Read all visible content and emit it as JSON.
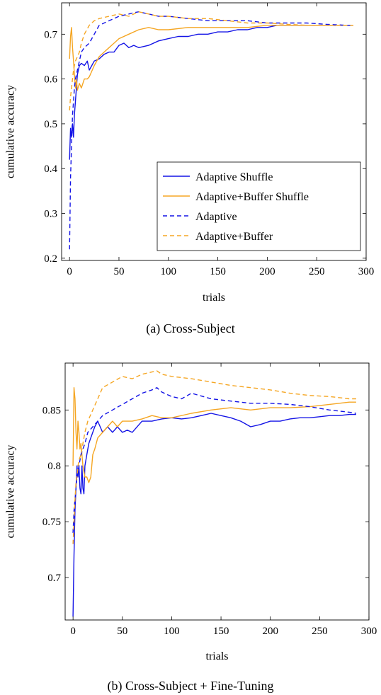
{
  "colors": {
    "blue": "#1414e6",
    "orange": "#f5a623"
  },
  "chart_data": [
    {
      "type": "line",
      "caption": "(a) Cross-Subject",
      "xlabel": "trials",
      "ylabel": "cumulative accuracy",
      "xlim": [
        -8,
        300
      ],
      "ylim": [
        0.195,
        0.77
      ],
      "xticks": [
        0,
        50,
        100,
        150,
        200,
        250,
        300
      ],
      "yticks": [
        0.2,
        0.3,
        0.4,
        0.5,
        0.6,
        0.7
      ],
      "ytick_labels": [
        "0.2",
        "0.3",
        "0.4",
        "0.5",
        "0.6",
        "0.7"
      ],
      "legend": "bottom-right",
      "grid": false,
      "series": [
        {
          "name": "Adaptive Shuffle",
          "color": "blue",
          "dash": false,
          "x": [
            0,
            1,
            2,
            3,
            4,
            5,
            6,
            7,
            8,
            10,
            12,
            15,
            18,
            20,
            25,
            30,
            35,
            40,
            45,
            50,
            55,
            60,
            65,
            70,
            80,
            90,
            100,
            110,
            120,
            130,
            140,
            150,
            160,
            170,
            180,
            190,
            200,
            210,
            220,
            230,
            240,
            250,
            260,
            270,
            280,
            287
          ],
          "y": [
            0.42,
            0.49,
            0.47,
            0.5,
            0.47,
            0.52,
            0.55,
            0.58,
            0.61,
            0.63,
            0.635,
            0.63,
            0.64,
            0.62,
            0.64,
            0.645,
            0.655,
            0.66,
            0.66,
            0.675,
            0.68,
            0.67,
            0.675,
            0.67,
            0.675,
            0.685,
            0.69,
            0.695,
            0.695,
            0.7,
            0.7,
            0.705,
            0.705,
            0.71,
            0.71,
            0.715,
            0.715,
            0.72,
            0.72,
            0.72,
            0.72,
            0.72,
            0.72,
            0.72,
            0.72,
            0.72
          ]
        },
        {
          "name": "Adaptive+Buffer Shuffle",
          "color": "orange",
          "dash": false,
          "x": [
            0,
            1,
            2,
            3,
            4,
            5,
            6,
            7,
            8,
            10,
            12,
            15,
            18,
            20,
            25,
            30,
            35,
            40,
            45,
            50,
            60,
            70,
            80,
            90,
            100,
            120,
            140,
            160,
            180,
            200,
            220,
            240,
            260,
            280,
            287
          ],
          "y": [
            0.645,
            0.695,
            0.715,
            0.67,
            0.64,
            0.61,
            0.58,
            0.6,
            0.575,
            0.59,
            0.58,
            0.6,
            0.6,
            0.605,
            0.63,
            0.65,
            0.66,
            0.67,
            0.68,
            0.69,
            0.7,
            0.71,
            0.715,
            0.71,
            0.71,
            0.715,
            0.715,
            0.715,
            0.715,
            0.72,
            0.72,
            0.72,
            0.72,
            0.72,
            0.72
          ]
        },
        {
          "name": "Adaptive",
          "color": "blue",
          "dash": true,
          "x": [
            0,
            1,
            2,
            3,
            4,
            5,
            6,
            8,
            10,
            12,
            15,
            20,
            25,
            30,
            40,
            50,
            60,
            65,
            70,
            80,
            90,
            100,
            120,
            140,
            160,
            180,
            200,
            220,
            240,
            260,
            280,
            287
          ],
          "y": [
            0.22,
            0.38,
            0.45,
            0.52,
            0.55,
            0.58,
            0.6,
            0.62,
            0.64,
            0.66,
            0.67,
            0.68,
            0.7,
            0.72,
            0.73,
            0.74,
            0.745,
            0.748,
            0.75,
            0.745,
            0.74,
            0.74,
            0.735,
            0.73,
            0.73,
            0.73,
            0.725,
            0.725,
            0.725,
            0.722,
            0.72,
            0.72
          ]
        },
        {
          "name": "Adaptive+Buffer",
          "color": "orange",
          "dash": true,
          "x": [
            0,
            1,
            2,
            3,
            4,
            5,
            6,
            8,
            10,
            12,
            15,
            20,
            25,
            30,
            40,
            50,
            60,
            70,
            80,
            90,
            100,
            120,
            140,
            160,
            180,
            200,
            220,
            240,
            260,
            280,
            287
          ],
          "y": [
            0.53,
            0.56,
            0.58,
            0.6,
            0.62,
            0.63,
            0.64,
            0.65,
            0.66,
            0.68,
            0.7,
            0.72,
            0.73,
            0.735,
            0.74,
            0.745,
            0.74,
            0.75,
            0.745,
            0.74,
            0.74,
            0.735,
            0.735,
            0.73,
            0.725,
            0.725,
            0.722,
            0.72,
            0.72,
            0.72,
            0.72
          ]
        }
      ]
    },
    {
      "type": "line",
      "caption": "(b) Cross-Subject + Fine-Tuning",
      "xlabel": "trials",
      "ylabel": "cumulative accuracy",
      "xlim": [
        -8,
        300
      ],
      "ylim": [
        0.662,
        0.892
      ],
      "xticks": [
        0,
        50,
        100,
        150,
        200,
        250,
        300
      ],
      "yticks": [
        0.7,
        0.75,
        0.8,
        0.85
      ],
      "ytick_labels": [
        "0.7",
        "0.75",
        "0.8",
        "0.85"
      ],
      "grid": false,
      "series": [
        {
          "name": "Adaptive Shuffle",
          "color": "blue",
          "dash": false,
          "x": [
            0,
            1,
            2,
            3,
            4,
            5,
            6,
            7,
            8,
            9,
            10,
            11,
            12,
            14,
            16,
            18,
            20,
            22,
            25,
            30,
            35,
            40,
            45,
            50,
            55,
            60,
            70,
            80,
            90,
            100,
            110,
            120,
            130,
            140,
            150,
            160,
            170,
            180,
            190,
            200,
            210,
            220,
            230,
            240,
            250,
            260,
            270,
            280,
            287
          ],
          "y": [
            0.665,
            0.72,
            0.76,
            0.78,
            0.8,
            0.79,
            0.8,
            0.78,
            0.775,
            0.8,
            0.78,
            0.775,
            0.8,
            0.81,
            0.82,
            0.825,
            0.83,
            0.835,
            0.84,
            0.83,
            0.835,
            0.83,
            0.835,
            0.83,
            0.832,
            0.83,
            0.84,
            0.84,
            0.842,
            0.843,
            0.842,
            0.843,
            0.845,
            0.847,
            0.845,
            0.843,
            0.84,
            0.835,
            0.837,
            0.84,
            0.84,
            0.842,
            0.843,
            0.843,
            0.844,
            0.845,
            0.845,
            0.846,
            0.846
          ]
        },
        {
          "name": "Adaptive+Buffer Shuffle",
          "color": "orange",
          "dash": false,
          "x": [
            0,
            1,
            2,
            3,
            4,
            5,
            6,
            7,
            8,
            10,
            12,
            14,
            16,
            18,
            20,
            22,
            25,
            30,
            35,
            40,
            45,
            50,
            60,
            70,
            80,
            90,
            100,
            120,
            140,
            160,
            180,
            200,
            220,
            240,
            260,
            280,
            287
          ],
          "y": [
            0.8,
            0.87,
            0.86,
            0.83,
            0.815,
            0.84,
            0.83,
            0.815,
            0.82,
            0.8,
            0.79,
            0.79,
            0.785,
            0.79,
            0.81,
            0.815,
            0.825,
            0.83,
            0.835,
            0.84,
            0.835,
            0.84,
            0.84,
            0.842,
            0.845,
            0.843,
            0.843,
            0.847,
            0.85,
            0.852,
            0.85,
            0.852,
            0.852,
            0.853,
            0.855,
            0.857,
            0.857
          ]
        },
        {
          "name": "Adaptive",
          "color": "blue",
          "dash": true,
          "x": [
            0,
            1,
            2,
            3,
            4,
            5,
            6,
            8,
            10,
            12,
            15,
            20,
            25,
            30,
            40,
            50,
            60,
            70,
            80,
            85,
            90,
            100,
            110,
            120,
            140,
            160,
            180,
            200,
            220,
            240,
            260,
            280,
            287
          ],
          "y": [
            0.74,
            0.76,
            0.77,
            0.78,
            0.79,
            0.795,
            0.8,
            0.81,
            0.815,
            0.82,
            0.83,
            0.835,
            0.84,
            0.845,
            0.85,
            0.855,
            0.86,
            0.865,
            0.868,
            0.87,
            0.866,
            0.862,
            0.86,
            0.865,
            0.86,
            0.858,
            0.856,
            0.856,
            0.855,
            0.853,
            0.85,
            0.848,
            0.847
          ]
        },
        {
          "name": "Adaptive+Buffer",
          "color": "orange",
          "dash": true,
          "x": [
            0,
            1,
            2,
            3,
            4,
            5,
            6,
            8,
            10,
            12,
            15,
            20,
            25,
            30,
            40,
            50,
            60,
            70,
            80,
            85,
            90,
            100,
            120,
            140,
            160,
            180,
            200,
            220,
            240,
            260,
            280,
            287
          ],
          "y": [
            0.73,
            0.75,
            0.77,
            0.785,
            0.79,
            0.8,
            0.805,
            0.81,
            0.82,
            0.83,
            0.84,
            0.85,
            0.86,
            0.87,
            0.875,
            0.88,
            0.878,
            0.882,
            0.884,
            0.885,
            0.882,
            0.88,
            0.878,
            0.875,
            0.872,
            0.87,
            0.868,
            0.865,
            0.863,
            0.862,
            0.86,
            0.86
          ]
        }
      ]
    }
  ]
}
